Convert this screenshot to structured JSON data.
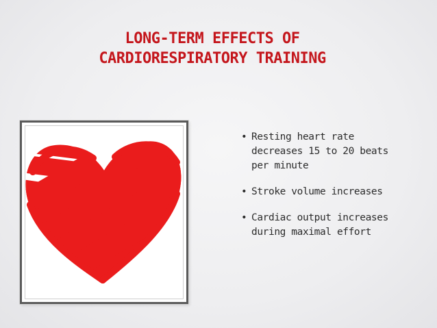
{
  "slide": {
    "title_lines": [
      "LONG-TERM EFFECTS OF",
      "CARDIORESPIRATORY TRAINING"
    ],
    "bullet_glyph": "•",
    "bullets": [
      {
        "lines": [
          "Resting heart rate",
          "decreases 15 to 20 beats",
          "per minute"
        ]
      },
      {
        "lines": [
          "Stroke volume increases"
        ]
      },
      {
        "lines": [
          "Cardiac output increases",
          "during maximal effort"
        ]
      }
    ]
  },
  "colors": {
    "title": "#c4161c",
    "heart": "#ea1c1c",
    "text": "#2b2b2b"
  }
}
